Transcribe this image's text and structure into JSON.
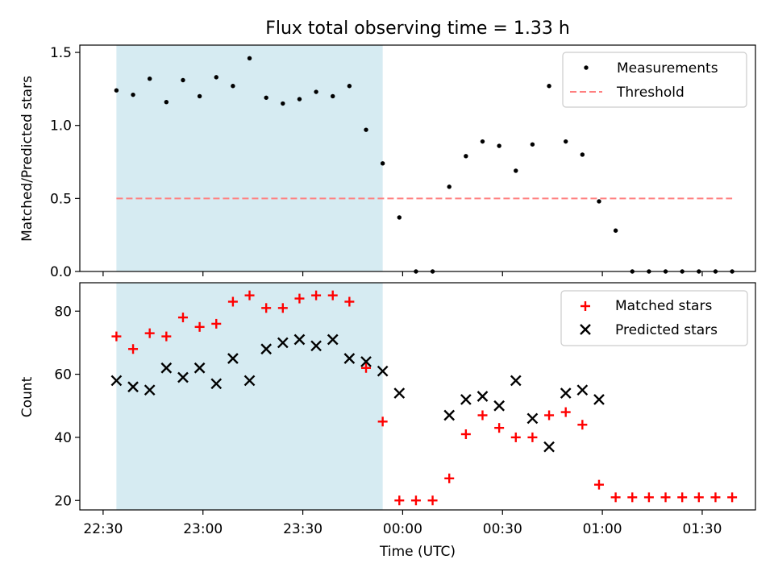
{
  "chart_data": [
    {
      "type": "scatter",
      "title": "Flux total observing time = 1.33 h",
      "ylabel": "Matched/Predicted stars",
      "xlabel": "",
      "ylim": [
        0,
        1.55
      ],
      "yticks": [
        0.0,
        0.5,
        1.0,
        1.5
      ],
      "ytick_labels": [
        "0.0",
        "0.5",
        "1.0",
        "1.5"
      ],
      "x_range": [
        "22:23",
        "01:46"
      ],
      "highlight_span": [
        "22:34",
        "23:54"
      ],
      "highlight_color": "#add8e6",
      "grid": false,
      "legend_position": "top-right",
      "series": [
        {
          "name": "Measurements",
          "marker": "dot",
          "color": "#000000",
          "x": [
            "22:34",
            "22:39",
            "22:44",
            "22:49",
            "22:54",
            "22:59",
            "23:04",
            "23:09",
            "23:14",
            "23:19",
            "23:24",
            "23:29",
            "23:34",
            "23:39",
            "23:44",
            "23:49",
            "23:54",
            "23:59",
            "00:04",
            "00:09",
            "00:14",
            "00:19",
            "00:24",
            "00:29",
            "00:34",
            "00:39",
            "00:44",
            "00:49",
            "00:54",
            "00:59",
            "01:04",
            "01:09",
            "01:14",
            "01:19",
            "01:24",
            "01:29",
            "01:34",
            "01:39"
          ],
          "y": [
            1.24,
            1.21,
            1.32,
            1.16,
            1.31,
            1.2,
            1.33,
            1.27,
            1.46,
            1.19,
            1.15,
            1.18,
            1.23,
            1.2,
            1.27,
            0.97,
            0.74,
            0.37,
            0.0,
            0.0,
            0.58,
            0.79,
            0.89,
            0.86,
            0.69,
            0.87,
            1.27,
            0.89,
            0.8,
            0.48,
            0.28,
            0.0,
            0.0,
            0.0,
            0.0,
            0.0,
            0.0,
            0.0
          ]
        },
        {
          "name": "Threshold",
          "marker": "dashed-line",
          "color": "#ff7f7f",
          "x": [
            "22:34",
            "01:39"
          ],
          "y": [
            0.5,
            0.5
          ]
        }
      ]
    },
    {
      "type": "scatter",
      "xlabel": "Time (UTC)",
      "ylabel": "Count",
      "ylim": [
        17,
        89
      ],
      "yticks": [
        20,
        40,
        60,
        80
      ],
      "ytick_labels": [
        "20",
        "40",
        "60",
        "80"
      ],
      "xticks": [
        "22:30",
        "23:00",
        "23:30",
        "00:00",
        "00:30",
        "01:00",
        "01:30"
      ],
      "x_range": [
        "22:23",
        "01:46"
      ],
      "highlight_span": [
        "22:34",
        "23:54"
      ],
      "highlight_color": "#add8e6",
      "grid": false,
      "legend_position": "top-right",
      "series": [
        {
          "name": "Matched stars",
          "marker": "plus",
          "color": "#ff0000",
          "x": [
            "22:34",
            "22:39",
            "22:44",
            "22:49",
            "22:54",
            "22:59",
            "23:04",
            "23:09",
            "23:14",
            "23:19",
            "23:24",
            "23:29",
            "23:34",
            "23:39",
            "23:44",
            "23:49",
            "23:54",
            "23:59",
            "00:04",
            "00:09",
            "00:14",
            "00:19",
            "00:24",
            "00:29",
            "00:34",
            "00:39",
            "00:44",
            "00:49",
            "00:54",
            "00:59",
            "01:04",
            "01:09",
            "01:14",
            "01:19",
            "01:24",
            "01:29",
            "01:34",
            "01:39"
          ],
          "y": [
            72,
            68,
            73,
            72,
            78,
            75,
            76,
            83,
            85,
            81,
            81,
            84,
            85,
            85,
            83,
            62,
            45,
            20,
            20,
            20,
            27,
            41,
            47,
            43,
            40,
            40,
            47,
            48,
            44,
            25,
            21,
            21,
            21,
            21,
            21,
            21,
            21,
            21
          ]
        },
        {
          "name": "Predicted stars",
          "marker": "x",
          "color": "#000000",
          "x": [
            "22:34",
            "22:39",
            "22:44",
            "22:49",
            "22:54",
            "22:59",
            "23:04",
            "23:09",
            "23:14",
            "23:19",
            "23:24",
            "23:29",
            "23:34",
            "23:39",
            "23:44",
            "23:49",
            "23:54",
            "23:59",
            "00:14",
            "00:19",
            "00:24",
            "00:29",
            "00:34",
            "00:39",
            "00:44",
            "00:49",
            "00:54",
            "00:59"
          ],
          "y": [
            58,
            56,
            55,
            62,
            59,
            62,
            57,
            65,
            58,
            68,
            70,
            71,
            69,
            71,
            65,
            64,
            61,
            54,
            47,
            52,
            53,
            50,
            58,
            46,
            37,
            54,
            55,
            52
          ]
        }
      ]
    }
  ]
}
